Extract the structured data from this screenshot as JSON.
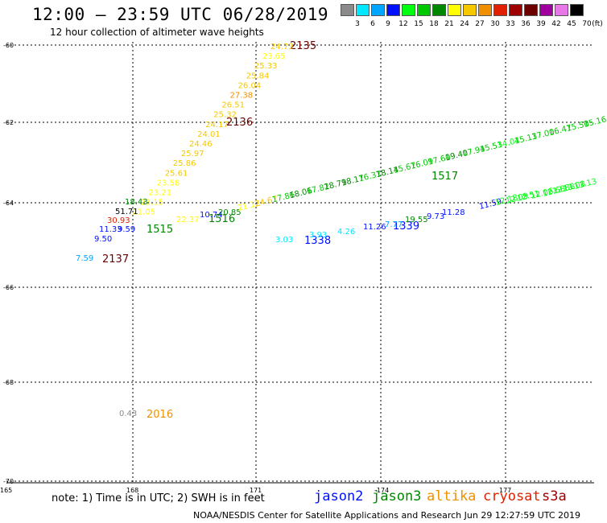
{
  "header": {
    "title": "12:00 — 23:59 UTC 06/28/2019",
    "subtitle": "12 hour collection of altimeter wave heights"
  },
  "colorbar": {
    "unit": "(ft)",
    "bins": [
      {
        "label": "3",
        "color": "#8a8a8a"
      },
      {
        "label": "6",
        "color": "#00e8ff"
      },
      {
        "label": "9",
        "color": "#00a6ff"
      },
      {
        "label": "12",
        "color": "#0010ff"
      },
      {
        "label": "15",
        "color": "#00ff10"
      },
      {
        "label": "18",
        "color": "#00c800"
      },
      {
        "label": "21",
        "color": "#008800"
      },
      {
        "label": "24",
        "color": "#ffff00"
      },
      {
        "label": "27",
        "color": "#f5c800"
      },
      {
        "label": "30",
        "color": "#f09000"
      },
      {
        "label": "33",
        "color": "#e02000"
      },
      {
        "label": "36",
        "color": "#a00000"
      },
      {
        "label": "39",
        "color": "#6a0000"
      },
      {
        "label": "42",
        "color": "#a000a0"
      },
      {
        "label": "45",
        "color": "#e878e8"
      },
      {
        "label": "70",
        "color": "#000000"
      }
    ]
  },
  "map": {
    "lat_labels": [
      "-60",
      "-62",
      "-64",
      "-66",
      "-68",
      "-70"
    ],
    "lon_labels": [
      "165",
      "168",
      "171",
      "-174",
      "177"
    ],
    "pass_labels": [
      {
        "text": "2135",
        "color": "#6a0000"
      },
      {
        "text": "2136",
        "color": "#6a0000"
      },
      {
        "text": "2137",
        "color": "#6a0000"
      },
      {
        "text": "1515",
        "color": "#008800"
      },
      {
        "text": "1516",
        "color": "#008800"
      },
      {
        "text": "1517",
        "color": "#008800"
      },
      {
        "text": "1338",
        "color": "#0010ff"
      },
      {
        "text": "1339",
        "color": "#0010ff"
      },
      {
        "text": "2016",
        "color": "#f09000"
      }
    ],
    "track_2135": [
      "24.73",
      "23.65",
      "25.33",
      "25.84",
      "26.04",
      "27.38",
      "26.51",
      "25.32",
      "24.17",
      "24.01",
      "24.46",
      "25.97",
      "25.86",
      "25.61",
      "23.58",
      "23.21",
      "23.15",
      "21.05"
    ],
    "track_2137": [
      "18.43",
      "51.71",
      "30.93",
      "11.33",
      "9.59",
      "9.50",
      "7.59"
    ],
    "track_1515": [
      "22.37",
      "10.74",
      "20.85"
    ],
    "track_1517_upper": [
      "21.12",
      "24.67",
      "17.86",
      "18.06",
      "17.82",
      "18.79",
      "18.17",
      "16.37",
      "18.14",
      "15.67",
      "16.09",
      "17.60",
      "19.40",
      "17.94",
      "15.53",
      "14.04",
      "15.13",
      "17.00",
      "16.47",
      "15.50",
      "15.16"
    ],
    "track_1339_lower": [
      "3.03",
      "3.93",
      "4.26",
      "11.26",
      "7.77",
      "19.55",
      "9.73",
      "11.28",
      "11.59",
      "12.18",
      "12.09",
      "12.51",
      "12.06",
      "12.68",
      "12.88",
      "13.08",
      "13.13"
    ],
    "misc": [
      "0.43"
    ]
  },
  "footer": {
    "note": "note:  1) Time is in UTC;  2) SWH is in feet",
    "satellites": [
      {
        "name": "jason2",
        "color": "#0010ff"
      },
      {
        "name": "jason3",
        "color": "#008800"
      },
      {
        "name": "altika",
        "color": "#f09000"
      },
      {
        "name": "cryosat",
        "color": "#e02000"
      },
      {
        "name": "s3a",
        "color": "#a00000"
      }
    ],
    "credit": "NOAA/NESDIS Center for Satellite Applications and Research     Jun 29 12:27:59 UTC 2019"
  }
}
